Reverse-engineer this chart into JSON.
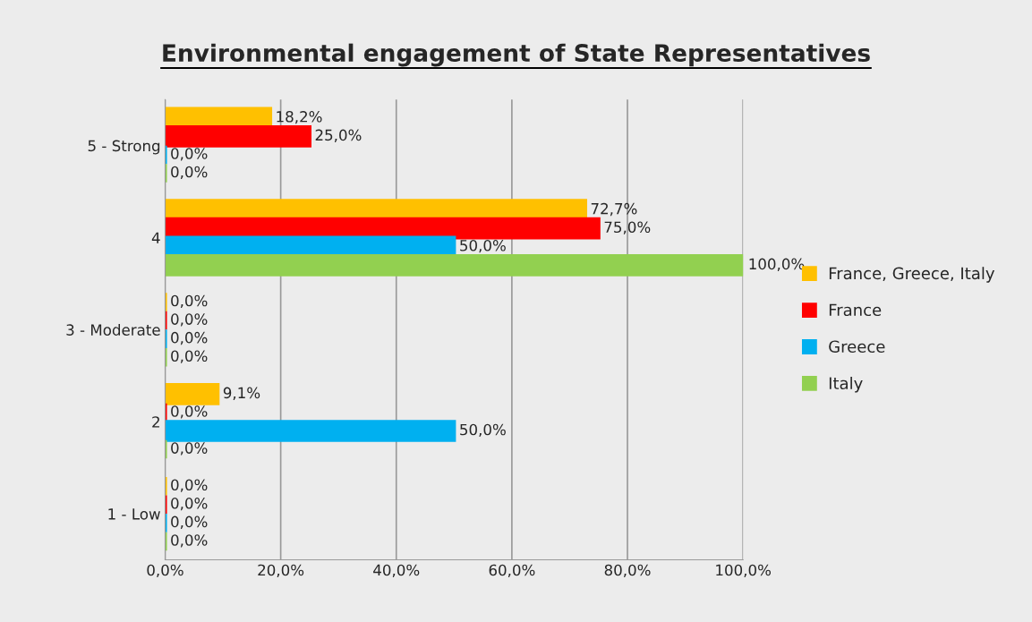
{
  "chart_data": {
    "type": "bar",
    "orientation": "horizontal",
    "title": "Environmental engagement of State Representatives",
    "categories": [
      "5 - Strong",
      "4",
      "3 - Moderate",
      "2",
      "1 - Low"
    ],
    "series": [
      {
        "name": "France, Greece, Italy",
        "color": "#ffc000",
        "values": [
          18.2,
          72.7,
          0,
          9.1,
          0
        ],
        "value_labels": [
          "18,2%",
          "72,7%",
          "0,0%",
          "9,1%",
          "0,0%"
        ]
      },
      {
        "name": "France",
        "color": "#ff0000",
        "values": [
          25,
          75,
          0,
          0,
          0
        ],
        "value_labels": [
          "25,0%",
          "75,0%",
          "0,0%",
          "0,0%",
          "0,0%"
        ]
      },
      {
        "name": "Greece",
        "color": "#00b0f0",
        "values": [
          0,
          50,
          0,
          50,
          0
        ],
        "value_labels": [
          "0,0%",
          "50,0%",
          "0,0%",
          "50,0%",
          "0,0%"
        ]
      },
      {
        "name": "Italy",
        "color": "#92d050",
        "values": [
          0,
          100,
          0,
          0,
          0
        ],
        "value_labels": [
          "0,0%",
          "100,0%",
          "0,0%",
          "0,0%",
          "0,0%"
        ]
      }
    ],
    "xlim": [
      0,
      100
    ],
    "xticks": [
      {
        "value": 0,
        "label": "0,0%"
      },
      {
        "value": 20,
        "label": "20,0%"
      },
      {
        "value": 40,
        "label": "40,0%"
      },
      {
        "value": 60,
        "label": "60,0%"
      },
      {
        "value": 80,
        "label": "80,0%"
      },
      {
        "value": 100,
        "label": "100,0%"
      }
    ],
    "grid": "x",
    "legend": "right"
  }
}
